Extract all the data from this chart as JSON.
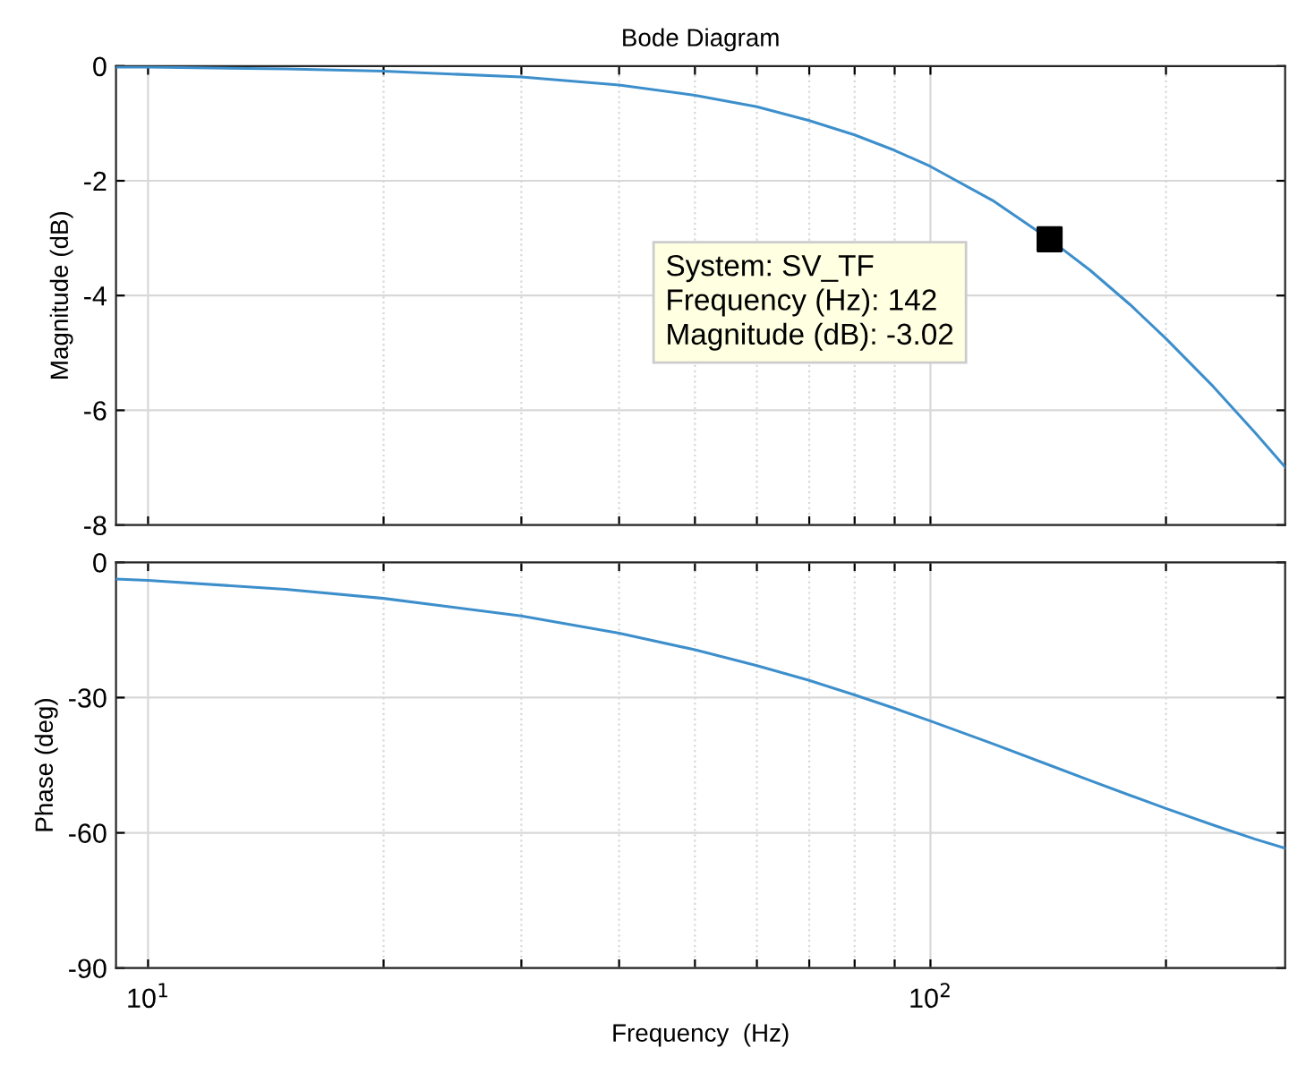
{
  "chart_data": [
    {
      "type": "line",
      "title": "Bode Diagram",
      "ylabel": "Magnitude (dB)",
      "x": [
        9.1,
        10,
        15,
        20,
        30,
        40,
        50,
        60,
        70,
        80,
        90,
        100,
        120,
        142,
        160,
        180,
        200,
        230,
        260,
        284
      ],
      "series": [
        {
          "color": "#3d8fcc",
          "values": [
            -0.02,
            -0.02,
            -0.05,
            -0.09,
            -0.19,
            -0.33,
            -0.51,
            -0.71,
            -0.95,
            -1.2,
            -1.47,
            -1.75,
            -2.34,
            -3.02,
            -3.56,
            -4.16,
            -4.75,
            -5.59,
            -6.39,
            -6.99
          ]
        },
        {
          "type": "scatter",
          "color": "#000000",
          "marker": "square",
          "x": [
            142
          ],
          "values": [
            -3.02
          ]
        }
      ],
      "annotations": [
        "System: SV_TF\nFrequency (Hz): 142\nMagnitude (dB): -3.02"
      ],
      "log": "x",
      "xlim": [
        9.1,
        284
      ],
      "ylim": [
        -8,
        0
      ],
      "xticks": [
        {
          "value": 10,
          "label": null
        },
        {
          "value": 20,
          "label": null
        },
        {
          "value": 30,
          "label": null
        },
        {
          "value": 40,
          "label": null
        },
        {
          "value": 50,
          "label": null
        },
        {
          "value": 60,
          "label": null
        },
        {
          "value": 70,
          "label": null
        },
        {
          "value": 80,
          "label": null
        },
        {
          "value": 90,
          "label": null
        },
        {
          "value": 100,
          "label": null
        },
        {
          "value": 200,
          "label": null
        }
      ],
      "yticks": [
        -8,
        -6,
        -4,
        -2,
        0
      ],
      "grid": true,
      "tick_labels": "y",
      "line_style": "solid"
    },
    {
      "type": "line",
      "xlabel": "Frequency  (Hz)",
      "ylabel": "Phase (deg)",
      "x": [
        9.1,
        10,
        15,
        20,
        30,
        40,
        50,
        60,
        70,
        80,
        90,
        100,
        120,
        142,
        160,
        180,
        200,
        230,
        260,
        284
      ],
      "series": [
        {
          "color": "#3d8fcc",
          "values": [
            -3.7,
            -4.0,
            -6.0,
            -8.0,
            -11.9,
            -15.7,
            -19.4,
            -22.9,
            -26.2,
            -29.4,
            -32.4,
            -35.2,
            -40.2,
            -45.0,
            -48.4,
            -51.7,
            -54.6,
            -58.3,
            -61.4,
            -63.4
          ]
        }
      ],
      "log": "x",
      "xlim": [
        9.1,
        284
      ],
      "ylim": [
        -90,
        0
      ],
      "xticks": [
        {
          "value": 10,
          "label": "10$^{1}$"
        },
        {
          "value": 20,
          "label": null
        },
        {
          "value": 30,
          "label": null
        },
        {
          "value": 40,
          "label": null
        },
        {
          "value": 50,
          "label": null
        },
        {
          "value": 60,
          "label": null
        },
        {
          "value": 70,
          "label": null
        },
        {
          "value": 80,
          "label": null
        },
        {
          "value": 90,
          "label": null
        },
        {
          "value": 100,
          "label": "10$^{2}$"
        },
        {
          "value": 200,
          "label": null
        }
      ],
      "yticks": [
        -90,
        -60,
        -30,
        0
      ],
      "grid": true,
      "line_style": "solid"
    }
  ]
}
